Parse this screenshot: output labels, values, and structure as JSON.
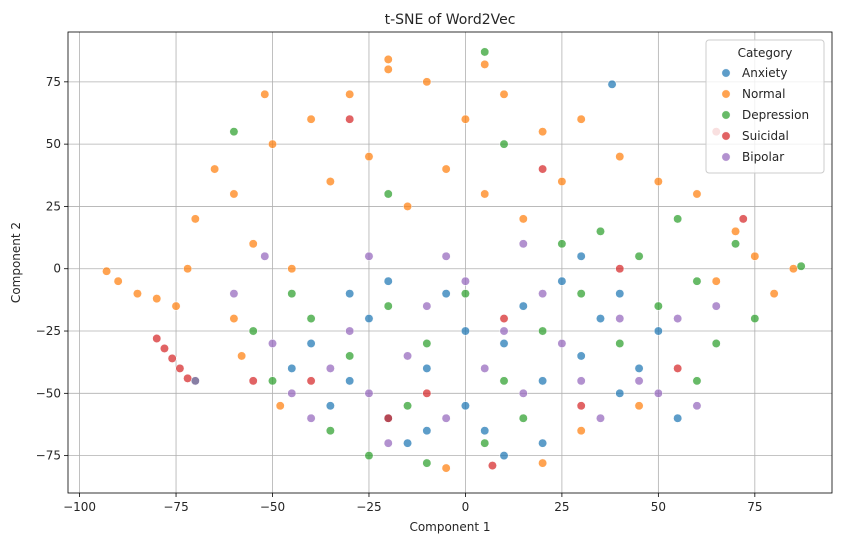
{
  "chart_data": {
    "type": "scatter",
    "title": "t-SNE of Word2Vec",
    "xlabel": "Component 1",
    "ylabel": "Component 2",
    "xlim": [
      -103,
      95
    ],
    "ylim": [
      -90,
      95
    ],
    "xticks": [
      -100,
      -75,
      -50,
      -25,
      0,
      25,
      50,
      75
    ],
    "yticks": [
      -75,
      -50,
      -25,
      0,
      25,
      50,
      75
    ],
    "grid": true,
    "legend": {
      "title": "Category",
      "placement": "top-right"
    },
    "series": [
      {
        "name": "Anxiety",
        "color": "#1f77b4",
        "points": [
          [
            -30,
            -45
          ],
          [
            -20,
            -60
          ],
          [
            -10,
            -40
          ],
          [
            0,
            -55
          ],
          [
            10,
            -30
          ],
          [
            20,
            -45
          ],
          [
            30,
            -35
          ],
          [
            40,
            -50
          ],
          [
            -40,
            -30
          ],
          [
            -25,
            -20
          ],
          [
            -15,
            -70
          ],
          [
            5,
            -65
          ],
          [
            15,
            -15
          ],
          [
            25,
            -5
          ],
          [
            35,
            -20
          ],
          [
            45,
            -40
          ],
          [
            50,
            -25
          ],
          [
            -5,
            -10
          ],
          [
            -35,
            -55
          ],
          [
            -45,
            -40
          ],
          [
            10,
            -75
          ],
          [
            -20,
            -5
          ],
          [
            30,
            5
          ],
          [
            40,
            -10
          ],
          [
            0,
            -25
          ],
          [
            -10,
            -65
          ],
          [
            20,
            -70
          ],
          [
            38,
            74
          ],
          [
            55,
            -60
          ],
          [
            -30,
            -10
          ]
        ]
      },
      {
        "name": "Normal",
        "color": "#ff7f0e",
        "points": [
          [
            -60,
            30
          ],
          [
            -50,
            50
          ],
          [
            -40,
            60
          ],
          [
            -30,
            70
          ],
          [
            -20,
            80
          ],
          [
            -10,
            75
          ],
          [
            0,
            60
          ],
          [
            10,
            70
          ],
          [
            20,
            55
          ],
          [
            30,
            60
          ],
          [
            40,
            45
          ],
          [
            50,
            35
          ],
          [
            60,
            30
          ],
          [
            70,
            15
          ],
          [
            -70,
            20
          ],
          [
            -65,
            40
          ],
          [
            -55,
            10
          ],
          [
            -45,
            0
          ],
          [
            -35,
            35
          ],
          [
            -25,
            45
          ],
          [
            -15,
            25
          ],
          [
            -5,
            40
          ],
          [
            5,
            30
          ],
          [
            15,
            20
          ],
          [
            25,
            35
          ],
          [
            -90,
            -5
          ],
          [
            -85,
            -10
          ],
          [
            -80,
            -12
          ],
          [
            -75,
            -15
          ],
          [
            -93,
            -1
          ],
          [
            80,
            -10
          ],
          [
            75,
            5
          ],
          [
            85,
            0
          ],
          [
            -60,
            -20
          ],
          [
            -48,
            -55
          ],
          [
            45,
            -55
          ],
          [
            20,
            -78
          ],
          [
            -5,
            -80
          ],
          [
            -20,
            84
          ],
          [
            5,
            82
          ],
          [
            -52,
            70
          ],
          [
            65,
            -5
          ],
          [
            -72,
            0
          ],
          [
            -58,
            -35
          ],
          [
            30,
            -65
          ]
        ]
      },
      {
        "name": "Depression",
        "color": "#2ca02c",
        "points": [
          [
            -40,
            -20
          ],
          [
            -30,
            -35
          ],
          [
            -20,
            -15
          ],
          [
            -10,
            -30
          ],
          [
            0,
            -10
          ],
          [
            10,
            -45
          ],
          [
            20,
            -25
          ],
          [
            30,
            -10
          ],
          [
            40,
            -30
          ],
          [
            50,
            -15
          ],
          [
            60,
            -5
          ],
          [
            70,
            10
          ],
          [
            55,
            20
          ],
          [
            45,
            5
          ],
          [
            35,
            15
          ],
          [
            25,
            10
          ],
          [
            -50,
            -45
          ],
          [
            -45,
            -10
          ],
          [
            -55,
            -25
          ],
          [
            -35,
            -65
          ],
          [
            -25,
            -75
          ],
          [
            -15,
            -55
          ],
          [
            5,
            -70
          ],
          [
            15,
            -60
          ],
          [
            65,
            -30
          ],
          [
            75,
            -20
          ],
          [
            87,
            1
          ],
          [
            5,
            87
          ],
          [
            -60,
            55
          ],
          [
            -70,
            -45
          ],
          [
            -20,
            30
          ],
          [
            10,
            50
          ],
          [
            60,
            -45
          ],
          [
            -10,
            -78
          ]
        ]
      },
      {
        "name": "Suicidal",
        "color": "#d62728",
        "points": [
          [
            -80,
            -28
          ],
          [
            -78,
            -32
          ],
          [
            -76,
            -36
          ],
          [
            -74,
            -40
          ],
          [
            -72,
            -44
          ],
          [
            -40,
            -45
          ],
          [
            -20,
            -60
          ],
          [
            10,
            -20
          ],
          [
            30,
            -55
          ],
          [
            55,
            -40
          ],
          [
            72,
            20
          ],
          [
            -30,
            60
          ],
          [
            20,
            40
          ],
          [
            -10,
            -50
          ],
          [
            40,
            0
          ],
          [
            7,
            -79
          ],
          [
            -55,
            -45
          ],
          [
            65,
            55
          ]
        ]
      },
      {
        "name": "Bipolar",
        "color": "#9467bd",
        "points": [
          [
            -35,
            -40
          ],
          [
            -25,
            -50
          ],
          [
            -15,
            -35
          ],
          [
            -5,
            -60
          ],
          [
            5,
            -40
          ],
          [
            15,
            -50
          ],
          [
            25,
            -30
          ],
          [
            35,
            -60
          ],
          [
            45,
            -45
          ],
          [
            -40,
            -60
          ],
          [
            -30,
            -25
          ],
          [
            -20,
            -70
          ],
          [
            -10,
            -15
          ],
          [
            0,
            -5
          ],
          [
            10,
            -25
          ],
          [
            20,
            -10
          ],
          [
            30,
            -45
          ],
          [
            40,
            -20
          ],
          [
            50,
            -50
          ],
          [
            -50,
            -30
          ],
          [
            -45,
            -50
          ],
          [
            -60,
            -10
          ],
          [
            55,
            -20
          ],
          [
            65,
            -15
          ],
          [
            -70,
            -45
          ],
          [
            -5,
            5
          ],
          [
            15,
            10
          ],
          [
            -25,
            5
          ],
          [
            -52,
            5
          ],
          [
            60,
            -55
          ]
        ]
      }
    ]
  }
}
